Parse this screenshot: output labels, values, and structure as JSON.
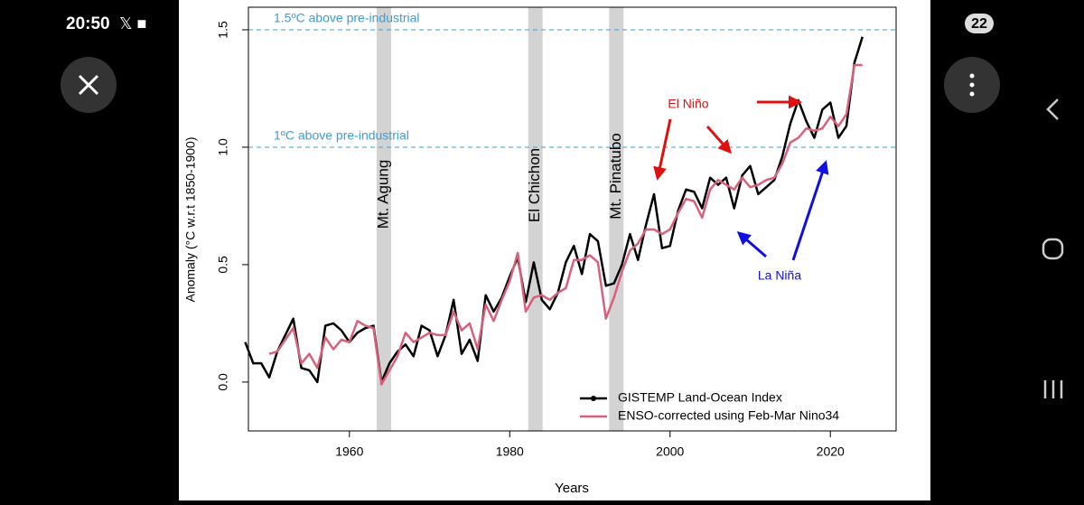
{
  "status_bar": {
    "time": "20:50",
    "battery": "22"
  },
  "chart_data": {
    "type": "line",
    "x_label": "Years",
    "y_label": "Anomaly (°C w.r.t 1850-1900)",
    "x": [
      1947,
      1948,
      1949,
      1950,
      1951,
      1952,
      1953,
      1954,
      1955,
      1956,
      1957,
      1958,
      1959,
      1960,
      1961,
      1962,
      1963,
      1964,
      1965,
      1966,
      1967,
      1968,
      1969,
      1970,
      1971,
      1972,
      1973,
      1974,
      1975,
      1976,
      1977,
      1978,
      1979,
      1980,
      1981,
      1982,
      1983,
      1984,
      1985,
      1986,
      1987,
      1988,
      1989,
      1990,
      1991,
      1992,
      1993,
      1994,
      1995,
      1996,
      1997,
      1998,
      1999,
      2000,
      2001,
      2002,
      2003,
      2004,
      2005,
      2006,
      2007,
      2008,
      2009,
      2010,
      2011,
      2012,
      2013,
      2014,
      2015,
      2016,
      2017,
      2018,
      2019,
      2020,
      2021,
      2022,
      2023,
      2024
    ],
    "series": [
      {
        "name": "GISTEMP Land-Ocean Index",
        "color": "#000000",
        "marker": true,
        "values": [
          0.17,
          0.08,
          0.08,
          0.02,
          0.13,
          0.2,
          0.27,
          0.06,
          0.05,
          0.0,
          0.24,
          0.25,
          0.22,
          0.17,
          0.21,
          0.23,
          0.24,
          0.0,
          0.08,
          0.13,
          0.16,
          0.11,
          0.24,
          0.22,
          0.11,
          0.2,
          0.35,
          0.12,
          0.18,
          0.09,
          0.37,
          0.3,
          0.36,
          0.45,
          0.53,
          0.34,
          0.51,
          0.35,
          0.31,
          0.38,
          0.51,
          0.58,
          0.46,
          0.63,
          0.6,
          0.41,
          0.42,
          0.5,
          0.63,
          0.52,
          0.67,
          0.8,
          0.57,
          0.58,
          0.73,
          0.82,
          0.81,
          0.74,
          0.87,
          0.84,
          0.87,
          0.74,
          0.88,
          0.92,
          0.8,
          0.83,
          0.86,
          0.96,
          1.1,
          1.2,
          1.11,
          1.04,
          1.16,
          1.19,
          1.04,
          1.09,
          1.36,
          1.47
        ]
      },
      {
        "name": "ENSO-corrected using Feb-Mar Nino34",
        "color": "#d9607a",
        "marker": false,
        "values": [
          null,
          null,
          null,
          0.12,
          0.13,
          0.18,
          0.23,
          0.08,
          0.12,
          0.06,
          0.19,
          0.14,
          0.18,
          0.17,
          0.26,
          0.24,
          0.23,
          -0.01,
          0.05,
          0.11,
          0.21,
          0.17,
          0.19,
          0.21,
          0.2,
          0.2,
          0.3,
          0.22,
          0.25,
          0.14,
          0.33,
          0.26,
          0.35,
          0.43,
          0.55,
          0.3,
          0.36,
          0.37,
          0.35,
          0.38,
          0.4,
          0.52,
          0.52,
          0.54,
          0.51,
          0.27,
          0.36,
          0.47,
          0.56,
          0.59,
          0.65,
          0.65,
          0.63,
          0.65,
          0.72,
          0.78,
          0.77,
          0.7,
          0.82,
          0.86,
          0.84,
          0.82,
          0.87,
          0.83,
          0.84,
          0.86,
          0.87,
          0.93,
          1.02,
          1.04,
          1.08,
          1.07,
          1.08,
          1.13,
          1.09,
          1.14,
          1.35,
          1.35
        ]
      }
    ],
    "xlim": [
      1947.4,
      2028.2
    ],
    "ylim": [
      -0.208,
      1.596
    ],
    "xticks": [
      1960,
      1980,
      2000,
      2020
    ],
    "yticks": [
      {
        "value": 0,
        "label": "0.0"
      },
      0.5,
      {
        "value": 1,
        "label": "1.0"
      },
      1.5
    ],
    "reference_lines": [
      {
        "value": 1.5,
        "label": "1.5ºC above pre-industrial",
        "color": "#3a9fd6"
      },
      {
        "value": 1,
        "label": "1ºC above pre-industrial",
        "color": "#3a9fd6"
      }
    ],
    "shaded_periods": [
      {
        "label": "Mt. Agung",
        "start": 1963.4,
        "end": 1965.2
      },
      {
        "label": "El Chichon",
        "start": 1982.3,
        "end": 1984.1
      },
      {
        "label": "Mt. Pinatubo",
        "start": 1992.4,
        "end": 1994.2
      }
    ],
    "annotations": [
      "El Niño",
      "La Niña"
    ],
    "legend": "lower right"
  }
}
